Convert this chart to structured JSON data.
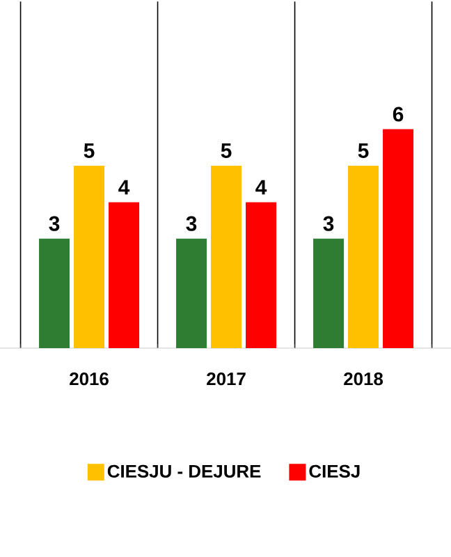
{
  "chart_data": {
    "type": "bar",
    "categories": [
      "2016",
      "2017",
      "2018"
    ],
    "series": [
      {
        "color": "#2e7d32",
        "values": [
          3,
          3,
          3
        ]
      },
      {
        "name": "CIESJU - DEJURE",
        "color": "#ffc000",
        "values": [
          5,
          5,
          5
        ]
      },
      {
        "name": "CIESJ",
        "color": "#ff0000",
        "values": [
          4,
          4,
          6
        ]
      }
    ],
    "ylim": [
      0,
      9.5
    ],
    "tick_labels": "x",
    "data_labels": true,
    "grid": "x",
    "legend": "bottom"
  }
}
